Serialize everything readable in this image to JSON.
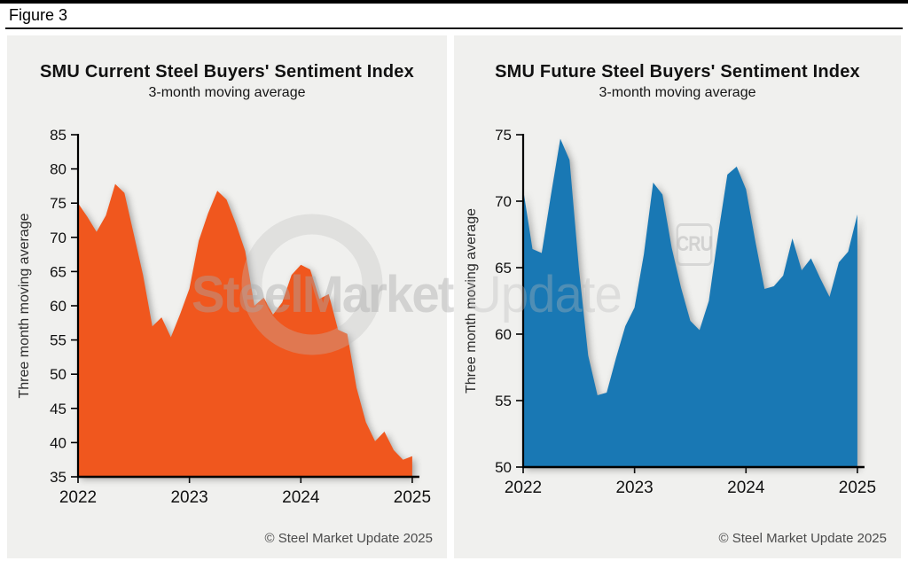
{
  "figure_label": "Figure 3",
  "watermark": {
    "brand_bold": "SteelMarket",
    "brand_light": " Update",
    "cru_label": "CRU"
  },
  "chart_data": [
    {
      "type": "area",
      "title": "SMU Current Steel Buyers' Sentiment Index",
      "subtitle": "3-month moving average",
      "ylabel": "Three month moving average",
      "footer_note": "© Steel Market Update 2025",
      "fill_color": "#F0571E",
      "axis_color": "#000000",
      "ylim": [
        35,
        85
      ],
      "ytick_step": 5,
      "x_frequency": "monthly",
      "x_tick_months": [
        0,
        12,
        24,
        36
      ],
      "x_tick_labels": [
        "2022",
        "2023",
        "2024",
        "2025"
      ],
      "values": [
        75.0,
        73.0,
        70.8,
        73.2,
        77.8,
        76.5,
        70.5,
        64.5,
        57.0,
        58.3,
        55.4,
        58.8,
        62.5,
        69.5,
        73.5,
        76.8,
        75.5,
        72.0,
        68.0,
        60.0,
        61.2,
        58.7,
        60.5,
        64.5,
        66.0,
        65.3,
        61.0,
        61.7,
        56.5,
        55.9,
        48.0,
        43.0,
        40.2,
        41.6,
        38.9,
        37.5,
        38.0
      ]
    },
    {
      "type": "area",
      "title": "SMU Future Steel Buyers' Sentiment Index",
      "subtitle": "3-month moving average",
      "ylabel": "Three month moving average",
      "footer_note": "© Steel Market Update 2025",
      "fill_color": "#1978B4",
      "axis_color": "#000000",
      "ylim": [
        50,
        75
      ],
      "ytick_step": 5,
      "x_frequency": "monthly",
      "x_tick_months": [
        0,
        12,
        24,
        36
      ],
      "x_tick_labels": [
        "2022",
        "2023",
        "2024",
        "2025"
      ],
      "values": [
        70.9,
        66.4,
        66.1,
        70.5,
        74.7,
        73.1,
        65.0,
        58.4,
        55.4,
        55.6,
        58.2,
        60.6,
        62.0,
        66.0,
        71.4,
        70.5,
        66.5,
        63.5,
        61.0,
        60.3,
        62.5,
        67.5,
        72.0,
        72.6,
        70.9,
        67.0,
        63.4,
        63.6,
        64.4,
        67.2,
        64.8,
        65.7,
        64.2,
        62.8,
        65.4,
        66.2,
        69.0
      ]
    }
  ]
}
